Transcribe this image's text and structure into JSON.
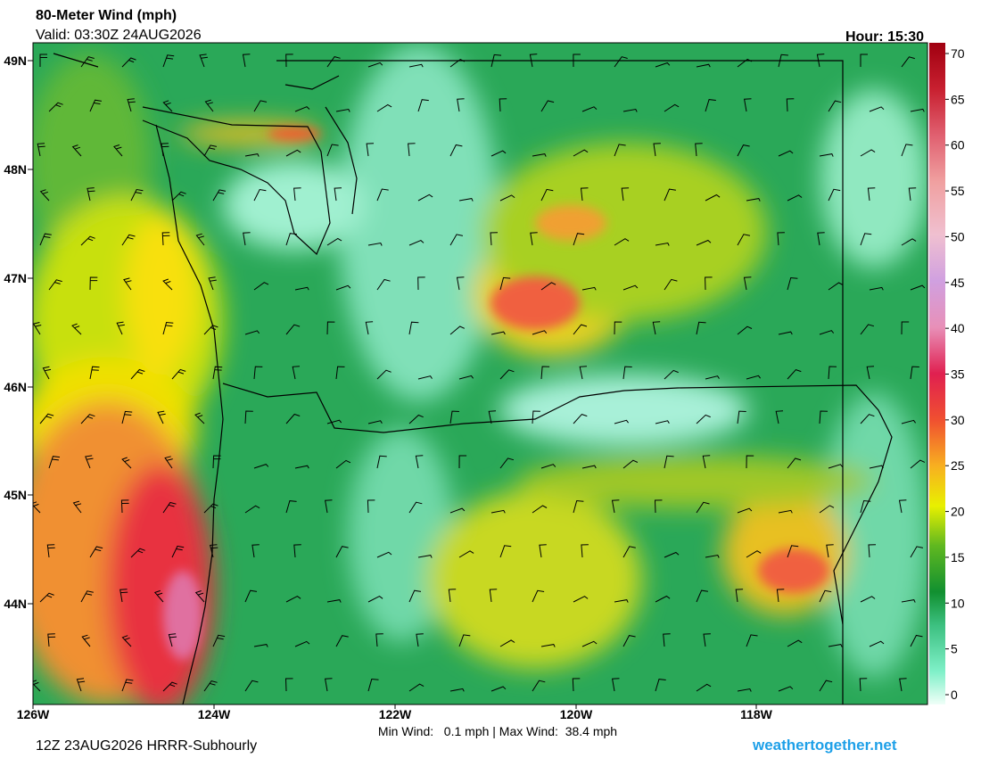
{
  "header": {
    "title": "80-Meter Wind (mph)",
    "valid": "Valid: 03:30Z 24AUG2026",
    "hour": "Hour: 15:30"
  },
  "map": {
    "lat_labels": [
      "49N",
      "48N",
      "47N",
      "46N",
      "45N",
      "44N"
    ],
    "lon_labels": [
      "126W",
      "124W",
      "122W",
      "120W",
      "118W"
    ]
  },
  "colorbar": {
    "ticks": [
      0,
      5,
      10,
      15,
      20,
      25,
      30,
      35,
      40,
      45,
      50,
      55,
      60,
      65,
      70
    ]
  },
  "footer": {
    "model": "12Z 23AUG2026 HRRR-Subhourly",
    "stats": "Min Wind:   0.1 mph | Max Wind:  38.4 mph",
    "site": "weathertogether.net"
  }
}
